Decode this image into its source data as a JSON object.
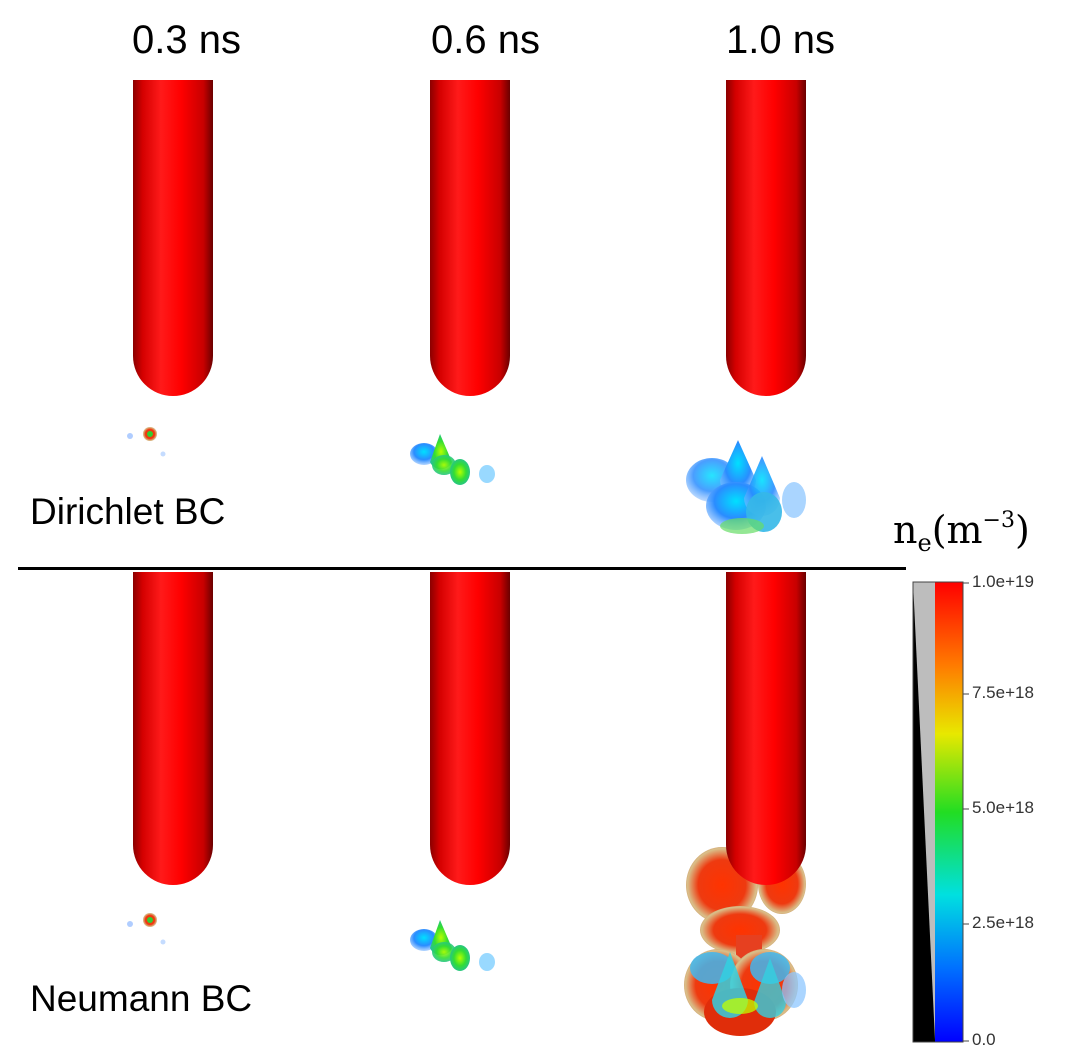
{
  "time_labels": [
    "0.3 ns",
    "0.6 ns",
    "1.0 ns"
  ],
  "row_labels": [
    "Dirichlet BC",
    "Neumann BC"
  ],
  "colorbar": {
    "title_main": "n",
    "title_sub": "e",
    "title_unit_open": "(m",
    "title_exp": "−3",
    "title_close": ")",
    "ticks": [
      "1.0e+19",
      "7.5e+18",
      "5.0e+18",
      "2.5e+18",
      "0.0"
    ],
    "colors": [
      "#ff0000",
      "#ff9900",
      "#e6f000",
      "#00dd00",
      "#00e6e6",
      "#0066ff",
      "#0000ff"
    ]
  }
}
